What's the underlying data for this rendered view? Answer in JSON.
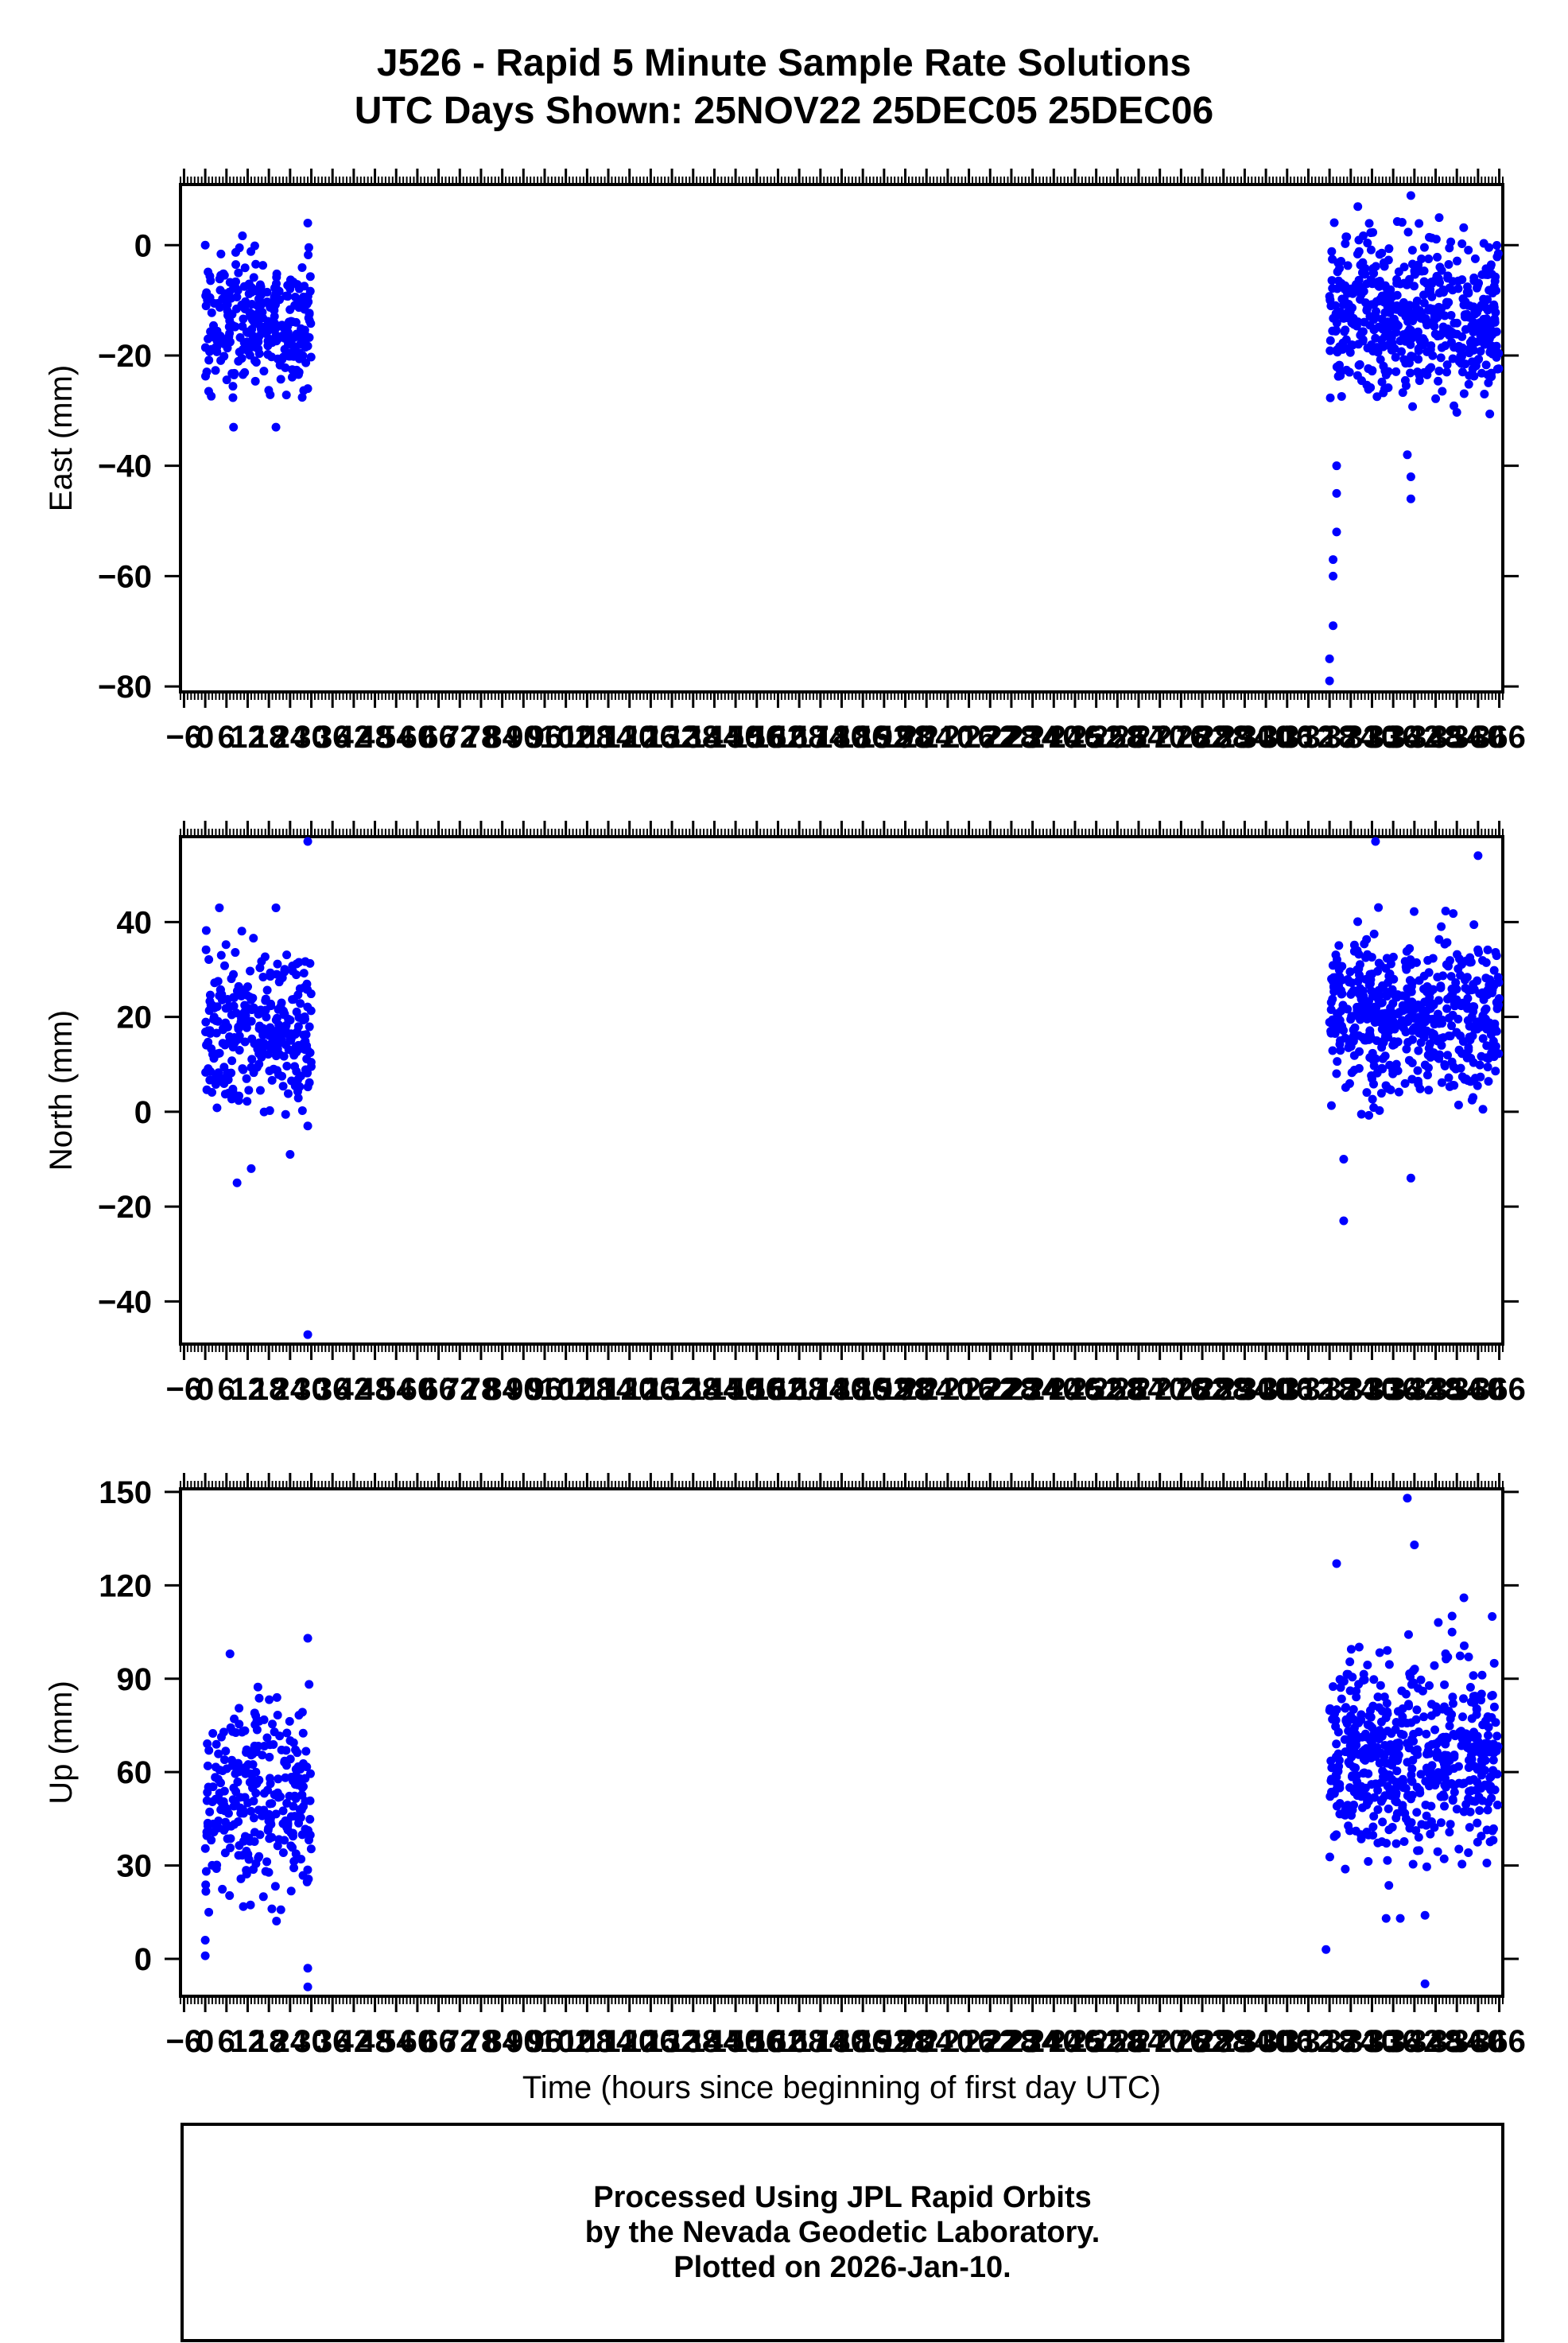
{
  "title": {
    "line1": "J526 - Rapid 5 Minute Sample Rate Solutions",
    "line2": "UTC Days Shown:  25NOV22 25DEC05 25DEC06"
  },
  "footer": {
    "line1": "Processed Using JPL Rapid Orbits",
    "line2": "by the Nevada Geodetic Laboratory.",
    "line3": "Plotted on 2026-Jan-10."
  },
  "colors": {
    "points": "#0000ff",
    "axes": "#000000",
    "background": "#ffffff"
  },
  "chart_data": [
    {
      "type": "scatter",
      "ylabel": "East (mm)",
      "xlabel": "",
      "xlim": [
        -7,
        367
      ],
      "ylim": [
        -81,
        11
      ],
      "yticks": [
        0,
        -20,
        -40,
        -60,
        -80
      ],
      "xtick_step": 6,
      "x_first_tick": -6,
      "x_last_tick": 366,
      "grid": false,
      "series": [
        {
          "segments": [
            {
              "x_start": 0,
              "x_end": 30,
              "center": -14,
              "spread": 6,
              "count": 290
            },
            {
              "x_start": 318,
              "x_end": 366,
              "center": -13,
              "spread": 7,
              "count": 540
            }
          ],
          "outliers": [
            {
              "x": 0,
              "y": 0
            },
            {
              "x": 8,
              "y": -33
            },
            {
              "x": 20,
              "y": -33
            },
            {
              "x": 29,
              "y": 4
            },
            {
              "x": 29,
              "y": -26
            },
            {
              "x": 318,
              "y": -79
            },
            {
              "x": 318,
              "y": -75
            },
            {
              "x": 319,
              "y": -69
            },
            {
              "x": 319,
              "y": -60
            },
            {
              "x": 319,
              "y": -57
            },
            {
              "x": 320,
              "y": -52
            },
            {
              "x": 320,
              "y": -45
            },
            {
              "x": 320,
              "y": -40
            },
            {
              "x": 326,
              "y": 7
            },
            {
              "x": 341,
              "y": 9
            },
            {
              "x": 341,
              "y": -46
            },
            {
              "x": 341,
              "y": -42
            },
            {
              "x": 340,
              "y": -38
            },
            {
              "x": 349,
              "y": 5
            }
          ]
        }
      ]
    },
    {
      "type": "scatter",
      "ylabel": "North (mm)",
      "xlabel": "",
      "xlim": [
        -7,
        367
      ],
      "ylim": [
        -49,
        58
      ],
      "yticks": [
        40,
        20,
        0,
        -20,
        -40
      ],
      "xtick_step": 6,
      "x_first_tick": -6,
      "x_last_tick": 366,
      "grid": false,
      "series": [
        {
          "segments": [
            {
              "x_start": 0,
              "x_end": 30,
              "center": 18,
              "spread": 9,
              "count": 290
            },
            {
              "x_start": 318,
              "x_end": 366,
              "center": 20,
              "spread": 8,
              "count": 540
            }
          ],
          "outliers": [
            {
              "x": 29,
              "y": 57
            },
            {
              "x": 29,
              "y": -47
            },
            {
              "x": 29,
              "y": -3
            },
            {
              "x": 9,
              "y": -15
            },
            {
              "x": 13,
              "y": -12
            },
            {
              "x": 24,
              "y": -9
            },
            {
              "x": 4,
              "y": 43
            },
            {
              "x": 20,
              "y": 43
            },
            {
              "x": 322,
              "y": -23
            },
            {
              "x": 322,
              "y": -10
            },
            {
              "x": 331,
              "y": 57
            },
            {
              "x": 341,
              "y": -14
            },
            {
              "x": 360,
              "y": 54
            }
          ]
        }
      ]
    },
    {
      "type": "scatter",
      "ylabel": "Up (mm)",
      "xlabel": "Time (hours since beginning of first day UTC)",
      "xlim": [
        -7,
        367
      ],
      "ylim": [
        -12,
        151
      ],
      "yticks": [
        150,
        120,
        90,
        60,
        30,
        0
      ],
      "xtick_step": 6,
      "x_first_tick": -6,
      "x_last_tick": 366,
      "grid": false,
      "series": [
        {
          "segments": [
            {
              "x_start": 0,
              "x_end": 30,
              "center": 52,
              "spread": 16,
              "count": 290
            },
            {
              "x_start": 318,
              "x_end": 366,
              "center": 65,
              "spread": 16,
              "count": 540
            }
          ],
          "outliers": [
            {
              "x": 0,
              "y": 1
            },
            {
              "x": 0,
              "y": 6
            },
            {
              "x": 1,
              "y": 15
            },
            {
              "x": 29,
              "y": 103
            },
            {
              "x": 29,
              "y": -3
            },
            {
              "x": 29,
              "y": -9
            },
            {
              "x": 7,
              "y": 98
            },
            {
              "x": 317,
              "y": 3
            },
            {
              "x": 320,
              "y": 127
            },
            {
              "x": 334,
              "y": 13
            },
            {
              "x": 338,
              "y": 13
            },
            {
              "x": 340,
              "y": 148
            },
            {
              "x": 342,
              "y": 133
            },
            {
              "x": 345,
              "y": -8
            },
            {
              "x": 345,
              "y": 14
            },
            {
              "x": 356,
              "y": 116
            },
            {
              "x": 364,
              "y": 110
            }
          ]
        }
      ]
    }
  ]
}
